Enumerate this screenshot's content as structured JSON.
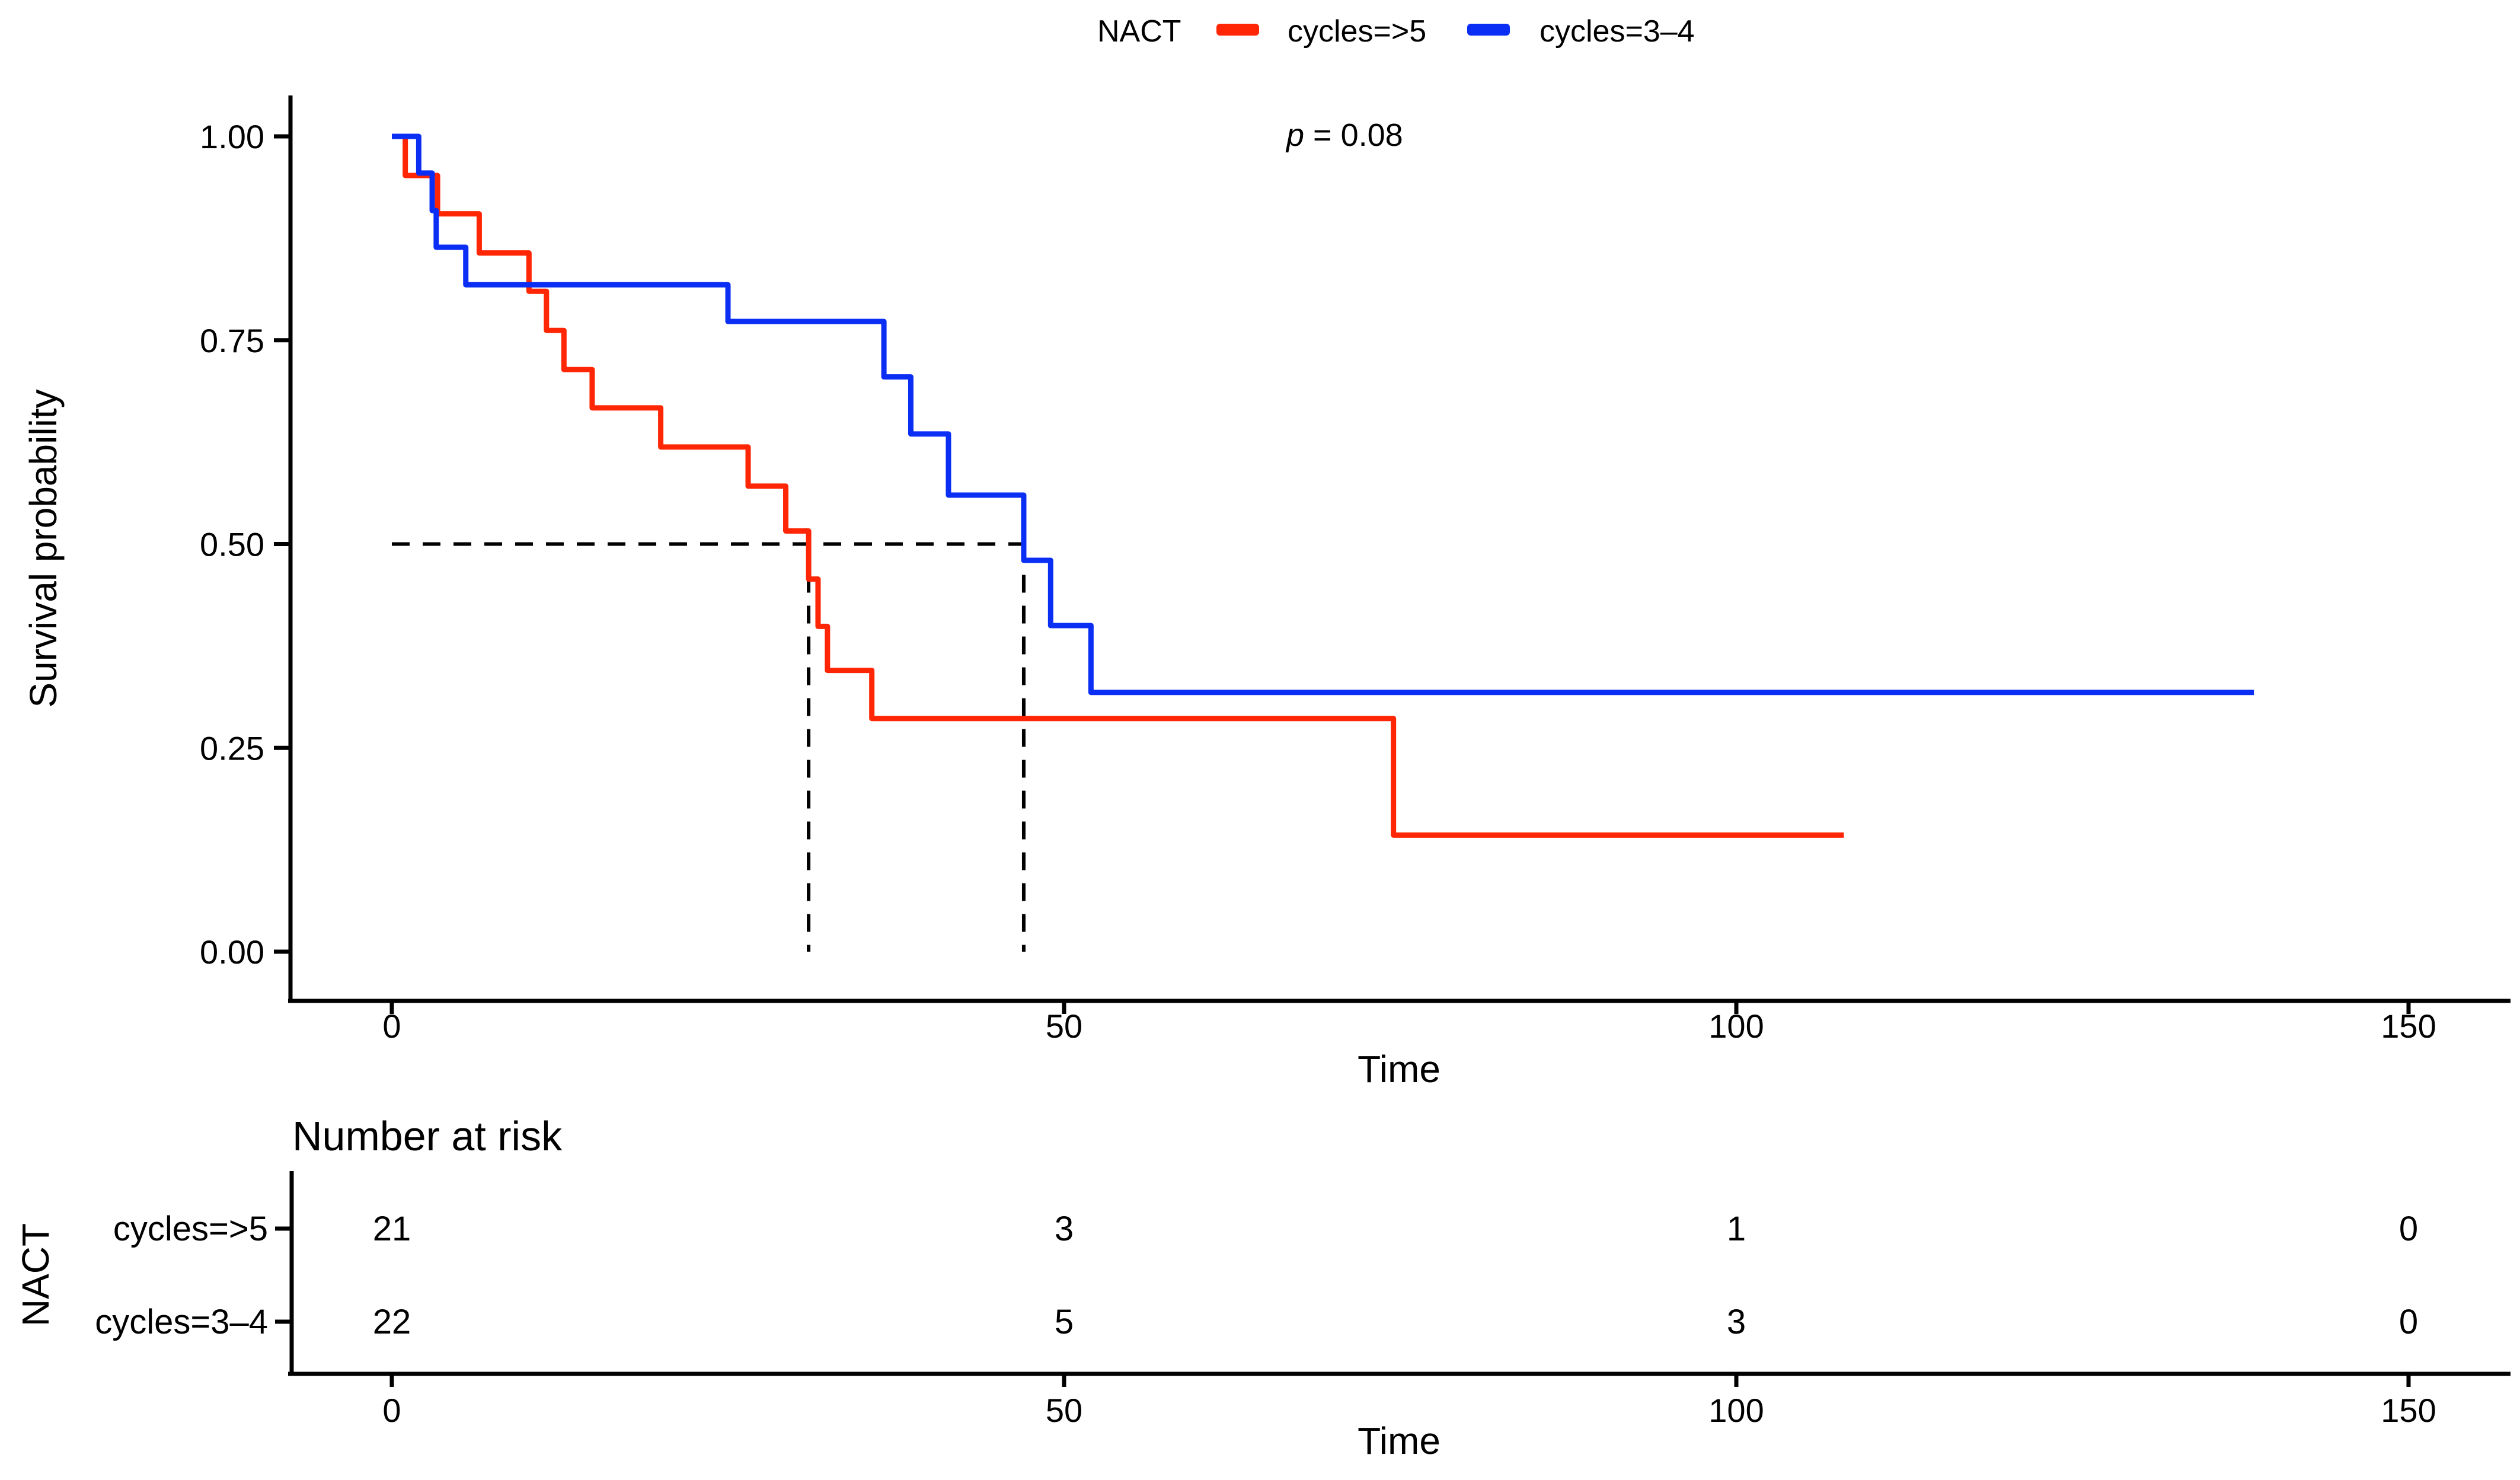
{
  "legend": {
    "title": "NACT",
    "items": [
      {
        "label": "cycles=>5",
        "color": "#FF2605"
      },
      {
        "label": "cycles=3–4",
        "color": "#0B2EF5"
      }
    ]
  },
  "annotation": {
    "p_italic": "p",
    "p_rest": " = 0.08"
  },
  "chart_data": {
    "type": "line",
    "subtype": "kaplan-meier-step",
    "xlabel": "Time",
    "ylabel": "Survival probability",
    "xlim": [
      0,
      150
    ],
    "ylim": [
      0,
      1
    ],
    "x_ticks": [
      0,
      50,
      100,
      150
    ],
    "y_ticks": [
      0,
      0.25,
      0.5,
      0.75,
      1
    ],
    "y_tick_labels": [
      "0.00",
      "0.25",
      "0.50",
      "0.75",
      "1.00"
    ],
    "grid": false,
    "legend_position": "top",
    "p_value_text": "p = 0.08",
    "median_survival": {
      "probability": 0.5,
      "times": [
        31,
        47
      ]
    },
    "series": [
      {
        "name": "cycles=>5",
        "color": "#FF2605",
        "start": [
          0,
          1.0
        ],
        "steps": [
          [
            1,
            0.952
          ],
          [
            3.4,
            0.905
          ],
          [
            6.5,
            0.857
          ],
          [
            10.2,
            0.81
          ],
          [
            11.5,
            0.762
          ],
          [
            12.8,
            0.714
          ],
          [
            14.9,
            0.667
          ],
          [
            20,
            0.619
          ],
          [
            26.5,
            0.571
          ],
          [
            29.3,
            0.516
          ],
          [
            31,
            0.457
          ],
          [
            31.7,
            0.399
          ],
          [
            32.4,
            0.345
          ],
          [
            35.7,
            0.286
          ],
          [
            74.5,
            0.143
          ]
        ],
        "end_time": 108
      },
      {
        "name": "cycles=3–4",
        "color": "#0B2EF5",
        "start": [
          0,
          1.0
        ],
        "steps": [
          [
            2,
            0.955
          ],
          [
            3,
            0.909
          ],
          [
            3.3,
            0.864
          ],
          [
            5.5,
            0.818
          ],
          [
            25,
            0.773
          ],
          [
            36.6,
            0.705
          ],
          [
            38.6,
            0.635
          ],
          [
            41.4,
            0.56
          ],
          [
            47,
            0.48
          ],
          [
            49,
            0.4
          ],
          [
            52,
            0.318
          ]
        ],
        "end_time": 138.5
      }
    ]
  },
  "risk_table": {
    "title": "Number at risk",
    "ylabel": "NACT",
    "xlabel": "Time",
    "time_points": [
      0,
      50,
      100,
      150
    ],
    "rows": [
      {
        "label": "cycles=>5",
        "color": "#FF2605",
        "counts": [
          21,
          3,
          1,
          0
        ]
      },
      {
        "label": "cycles=3–4",
        "color": "#0B2EF5",
        "counts": [
          22,
          5,
          3,
          0
        ]
      }
    ]
  }
}
